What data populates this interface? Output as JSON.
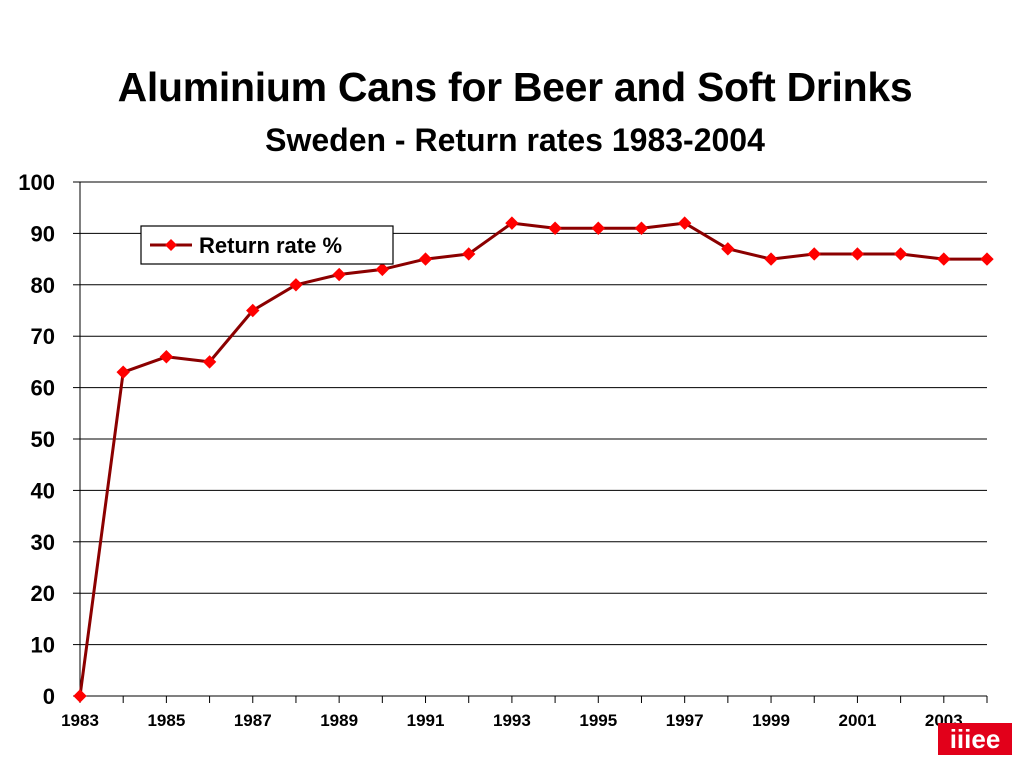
{
  "slide": {
    "title": "Aluminium Cans for Beer and Soft Drinks",
    "subtitle": "Sweden - Return rates 1983-2004",
    "logo_text": "iiiee",
    "logo_color": "#e2001a"
  },
  "chart_data": {
    "type": "line",
    "title": "",
    "xlabel": "",
    "ylabel": "",
    "x": [
      1983,
      1984,
      1985,
      1986,
      1987,
      1988,
      1989,
      1990,
      1991,
      1992,
      1993,
      1994,
      1995,
      1996,
      1997,
      1998,
      1999,
      2000,
      2001,
      2002,
      2003,
      2004
    ],
    "x_tick_labels": [
      "1983",
      "1985",
      "1987",
      "1989",
      "1991",
      "1993",
      "1995",
      "1997",
      "1999",
      "2001",
      "2003"
    ],
    "ylim": [
      0,
      100
    ],
    "y_ticks": [
      "0",
      "10",
      "20",
      "30",
      "40",
      "50",
      "60",
      "70",
      "80",
      "90",
      "100"
    ],
    "grid": true,
    "legend_position": "top-left",
    "series": [
      {
        "name": "Return rate %",
        "values": [
          0,
          63,
          66,
          65,
          75,
          80,
          82,
          83,
          85,
          86,
          92,
          91,
          91,
          91,
          92,
          87,
          85,
          86,
          86,
          86,
          85,
          85
        ],
        "line_color": "#8b0000",
        "marker_color": "#ff0000",
        "marker": "diamond"
      }
    ]
  }
}
